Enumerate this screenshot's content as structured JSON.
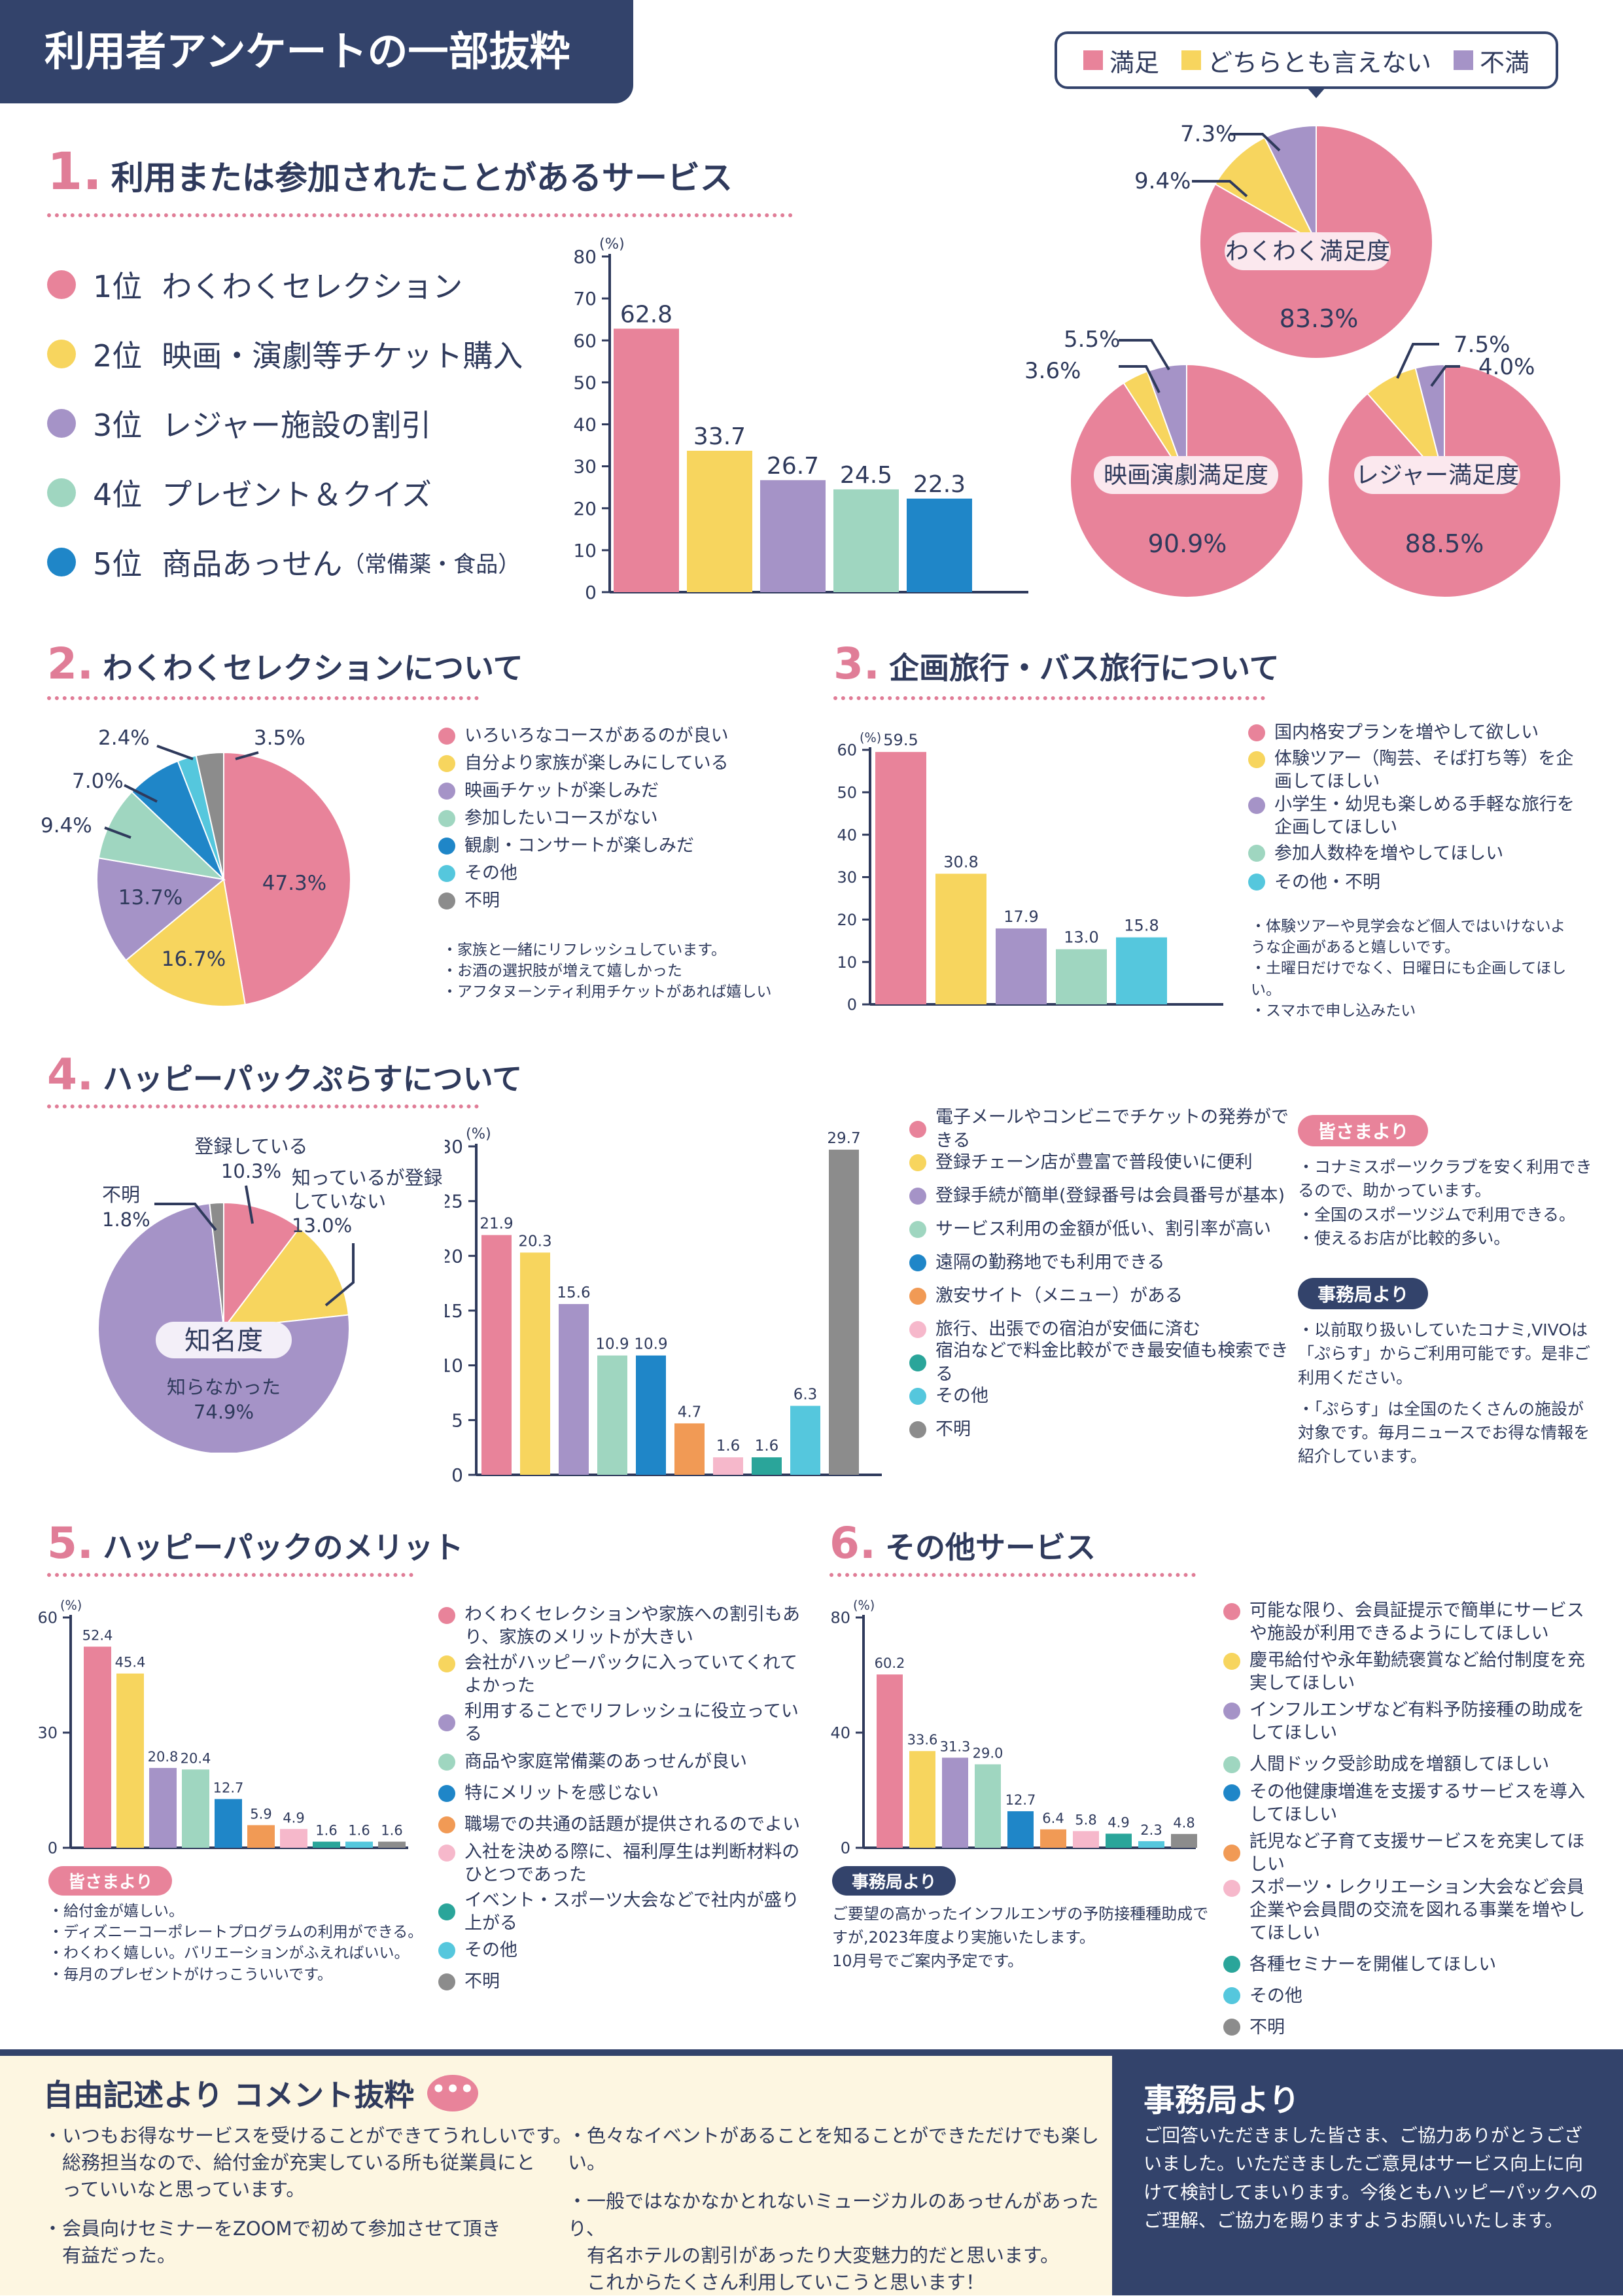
{
  "header": {
    "title": "利用者アンケートの一部抜粋"
  },
  "colors": {
    "pink": "#e8839a",
    "yellow": "#f7d55e",
    "purple": "#a593c7",
    "mint": "#9fd6c0",
    "blue": "#1f86c8",
    "orange": "#f19a55",
    "lightpink": "#f6b8cb",
    "teal": "#2aa59a",
    "cyan": "#55c7dd",
    "gray": "#8c8c8c",
    "navy": "#33436b"
  },
  "satisfaction_legend": [
    "満足",
    "どちらとも言えない",
    "不満"
  ],
  "sec1": {
    "num": "1.",
    "title": "利用または参加されたことがあるサービス",
    "ranks": [
      {
        "rank": "1位",
        "name": "わくわくセレクション",
        "note": ""
      },
      {
        "rank": "2位",
        "name": "映画・演劇等チケット購入",
        "note": ""
      },
      {
        "rank": "3位",
        "name": "レジャー施設の割引",
        "note": ""
      },
      {
        "rank": "4位",
        "name": "プレゼント＆クイズ",
        "note": ""
      },
      {
        "rank": "5位",
        "name": "商品あっせん",
        "note": "（常備薬・食品）"
      }
    ],
    "pies": [
      {
        "title": "わくわく満足度",
        "main_label": "83.3%",
        "labels": [
          "9.4%",
          "7.3%"
        ]
      },
      {
        "title": "映画演劇満足度",
        "main_label": "90.9%",
        "labels": [
          "3.6%",
          "5.5%"
        ]
      },
      {
        "title": "レジャー満足度",
        "main_label": "88.5%",
        "labels": [
          "7.5%",
          "4.0%"
        ]
      }
    ]
  },
  "sec2": {
    "num": "2.",
    "title": "わくわくセレクションについて",
    "legend": [
      "いろいろなコースがあるのが良い",
      "自分より家族が楽しみにしている",
      "映画チケットが楽しみだ",
      "参加したいコースがない",
      "観劇・コンサートが楽しみだ",
      "その他",
      "不明"
    ],
    "comments": [
      "・家族と一緒にリフレッシュしています。",
      "・お酒の選択肢が増えて嬉しかった",
      "・アフタヌーンティ利用チケットがあれば嬉しい"
    ],
    "labels": [
      "47.3%",
      "16.7%",
      "13.7%",
      "9.4%",
      "7.0%",
      "2.4%",
      "3.5%"
    ]
  },
  "sec3": {
    "num": "3.",
    "title": "企画旅行・バス旅行について",
    "legend": [
      "国内格安プランを増やして欲しい",
      "体験ツアー（陶芸、そば打ち等）を企画してほしい",
      "小学生・幼児も楽しめる手軽な旅行を企画してほしい",
      "参加人数枠を増やしてほしい",
      "その他・不明"
    ],
    "comments": [
      "・体験ツアーや見学会など個人ではいけないような企画があると嬉しいです。",
      "・土曜日だけでなく、日曜日にも企画してほしい。",
      "・スマホで申し込みたい"
    ]
  },
  "sec4": {
    "num": "4.",
    "title": "ハッピーパックぷらすについて",
    "pie_center": "知名度",
    "pie_labels": {
      "registered": "登録している",
      "registered_pct": "10.3%",
      "known": "知っているが登録していない",
      "known_pct": "13.0%",
      "unknown": "知らなかった",
      "unknown_pct": "74.9%",
      "na": "不明",
      "na_pct": "1.8%"
    },
    "legend": [
      "電子メールやコンビニでチケットの発券ができる",
      "登録チェーン店が豊富で普段使いに便利",
      "登録手続が簡単(登録番号は会員番号が基本)",
      "サービス利用の金額が低い、割引率が高い",
      "遠隔の勤務地でも利用できる",
      "激安サイト（メニュー）がある",
      "旅行、出張での宿泊が安価に済む",
      "宿泊などで料金比較ができ最安値も検索できる",
      "その他",
      "不明"
    ],
    "from_members_label": "皆さまより",
    "from_members": [
      "・コナミスポーツクラブを安く利用できるので、助かっています。",
      "・全国のスポーツジムで利用できる。",
      "・使えるお店が比較的多い。"
    ],
    "from_office_label": "事務局より",
    "from_office": [
      "・以前取り扱いしていたコナミ,VIVOは「ぷらす」からご利用可能です。是非ご利用ください。",
      "・「ぷらす」は全国のたくさんの施設が対象です。毎月ニュースでお得な情報を紹介しています。"
    ]
  },
  "sec5": {
    "num": "5.",
    "title": "ハッピーパックのメリット",
    "legend": [
      "わくわくセレクションや家族への割引もあり、家族のメリットが大きい",
      "会社がハッピーパックに入っていてくれてよかった",
      "利用することでリフレッシュに役立っている",
      "商品や家庭常備薬のあっせんが良い",
      "特にメリットを感じない",
      "職場での共通の話題が提供されるのでよい",
      "入社を決める際に、福利厚生は判断材料のひとつであった",
      "イベント・スポーツ大会などで社内が盛り上がる",
      "その他",
      "不明"
    ],
    "from_members_label": "皆さまより",
    "from_members": [
      "・給付金が嬉しい。",
      "・ディズニーコーポレートプログラムの利用ができる。",
      "・わくわく嬉しい。バリエーションがふえればいい。",
      "・毎月のプレゼントがけっこういいです。"
    ]
  },
  "sec6": {
    "num": "6.",
    "title": "その他サービス",
    "legend": [
      "可能な限り、会員証提示で簡単にサービスや施設が利用できるようにしてほしい",
      "慶弔給付や永年勤続褒賞など給付制度を充実してほしい",
      "インフルエンザなど有料予防接種の助成をしてほしい",
      "人間ドック受診助成を増額してほしい",
      "その他健康増進を支援するサービスを導入してほしい",
      "託児など子育て支援サービスを充実してほしい",
      "スポーツ・レクリエーション大会など会員企業や会員間の交流を図れる事業を増やしてほしい",
      "各種セミナーを開催してほしい",
      "その他",
      "不明"
    ],
    "office_label": "事務局より",
    "office_text": [
      "ご要望の高かったインフルエンザの予防接種種助成で",
      "すが,2023年度より実施いたします。",
      "10月号でご案内予定です。"
    ]
  },
  "footer": {
    "left_title": "自由記述より コメント抜粋",
    "col1": [
      "・いつもお得なサービスを受けることができてうれしいです。",
      "　総務担当なので、給付金が充実している所も従業員にと",
      "　っていいなと思っています。",
      "・会員向けセミナーをZOOMで初めて参加させて頂き",
      "　有益だった。"
    ],
    "col2": [
      "・色々なイベントがあることを知ることができただけでも楽しい。",
      "・一般ではなかなかとれないミュージカルのあっせんがあったり、",
      "　有名ホテルの割引があったり大変魅力的だと思います。",
      "　これからたくさん利用していこうと思います！"
    ],
    "right_title": "事務局より",
    "right_text": [
      "ご回答いただきました皆さま、ご協力ありがとうござ",
      "いました。いただきましたご意見はサービス向上に向",
      "けて検討してまいります。今後ともハッピーパックへの",
      "ご理解、ご協力を賜りますようお願いいたします。"
    ]
  },
  "chart_data": [
    {
      "id": "sec1-bar",
      "type": "bar",
      "ylabel": "(%)",
      "ylim": [
        0,
        80
      ],
      "yticks": [
        0,
        10,
        20,
        30,
        40,
        50,
        60,
        70,
        80
      ],
      "categories": [
        "1位",
        "2位",
        "3位",
        "4位",
        "5位"
      ],
      "values": [
        62.8,
        33.7,
        26.7,
        24.5,
        22.3
      ],
      "value_labels": [
        "62.8",
        "33.7",
        "26.7",
        "24.5",
        "22.3"
      ],
      "color_keys": [
        "pink",
        "yellow",
        "purple",
        "mint",
        "blue"
      ]
    },
    {
      "id": "sec1-pie-wakuwaku",
      "type": "pie",
      "values": [
        83.3,
        9.4,
        7.3
      ],
      "labels": [
        "満足",
        "どちらとも言えない",
        "不満"
      ]
    },
    {
      "id": "sec1-pie-eiga",
      "type": "pie",
      "values": [
        90.9,
        3.6,
        5.5
      ],
      "labels": [
        "満足",
        "どちらとも言えない",
        "不満"
      ]
    },
    {
      "id": "sec1-pie-leisure",
      "type": "pie",
      "values": [
        88.5,
        7.5,
        4.0
      ],
      "labels": [
        "満足",
        "どちらとも言えない",
        "不満"
      ]
    },
    {
      "id": "sec2-pie",
      "type": "pie",
      "values": [
        47.3,
        16.7,
        13.7,
        9.4,
        7.0,
        2.4,
        3.5
      ],
      "labels": [
        "いろいろなコースがあるのが良い",
        "自分より家族が楽しみにしている",
        "映画チケットが楽しみだ",
        "参加したいコースがない",
        "観劇・コンサートが楽しみだ",
        "その他",
        "不明"
      ]
    },
    {
      "id": "sec3-bar",
      "type": "bar",
      "ylabel": "(%)",
      "ylim": [
        0,
        60
      ],
      "yticks": [
        0,
        10,
        20,
        30,
        40,
        50,
        60
      ],
      "categories": [
        "国内格安プラン",
        "体験ツアー",
        "小学生・幼児",
        "参加人数枠",
        "その他・不明"
      ],
      "values": [
        59.5,
        30.8,
        17.9,
        13.0,
        15.8
      ],
      "value_labels": [
        "59.5",
        "30.8",
        "17.9",
        "13.0",
        "15.8"
      ],
      "color_keys": [
        "pink",
        "yellow",
        "purple",
        "mint",
        "cyan"
      ]
    },
    {
      "id": "sec4-pie",
      "type": "pie",
      "values": [
        10.3,
        13.0,
        74.9,
        1.8
      ],
      "labels": [
        "登録している",
        "知っているが登録していない",
        "知らなかった",
        "不明"
      ]
    },
    {
      "id": "sec4-bar",
      "type": "bar",
      "ylabel": "(%)",
      "ylim": [
        0,
        30
      ],
      "yticks": [
        0,
        5,
        10,
        15,
        20,
        25,
        30
      ],
      "values": [
        21.9,
        20.3,
        15.6,
        10.9,
        10.9,
        4.7,
        1.6,
        1.6,
        6.3,
        29.7
      ],
      "value_labels": [
        "21.9",
        "20.3",
        "15.6",
        "10.9",
        "10.9",
        "4.7",
        "1.6",
        "1.6",
        "6.3",
        "29.7"
      ],
      "color_keys": [
        "pink",
        "yellow",
        "purple",
        "mint",
        "blue",
        "orange",
        "lightpink",
        "teal",
        "cyan",
        "gray"
      ]
    },
    {
      "id": "sec5-bar",
      "type": "bar",
      "ylabel": "(%)",
      "ylim": [
        0,
        60
      ],
      "yticks": [
        0,
        30,
        60
      ],
      "values": [
        52.4,
        45.4,
        20.8,
        20.4,
        12.7,
        5.9,
        4.9,
        1.6,
        1.6,
        1.6
      ],
      "value_labels": [
        "52.4",
        "45.4",
        "20.8",
        "20.4",
        "12.7",
        "5.9",
        "4.9",
        "1.6",
        "1.6",
        "1.6"
      ],
      "color_keys": [
        "pink",
        "yellow",
        "purple",
        "mint",
        "blue",
        "orange",
        "lightpink",
        "teal",
        "cyan",
        "gray"
      ]
    },
    {
      "id": "sec6-bar",
      "type": "bar",
      "ylabel": "(%)",
      "ylim": [
        0,
        80
      ],
      "yticks": [
        0,
        40,
        80
      ],
      "values": [
        60.2,
        33.6,
        31.3,
        29.0,
        12.7,
        6.4,
        5.8,
        4.9,
        2.3,
        4.8
      ],
      "value_labels": [
        "60.2",
        "33.6",
        "31.3",
        "29.0",
        "12.7",
        "6.4",
        "5.8",
        "4.9",
        "2.3",
        "4.8"
      ],
      "color_keys": [
        "pink",
        "yellow",
        "purple",
        "mint",
        "blue",
        "orange",
        "lightpink",
        "teal",
        "cyan",
        "gray"
      ]
    }
  ]
}
